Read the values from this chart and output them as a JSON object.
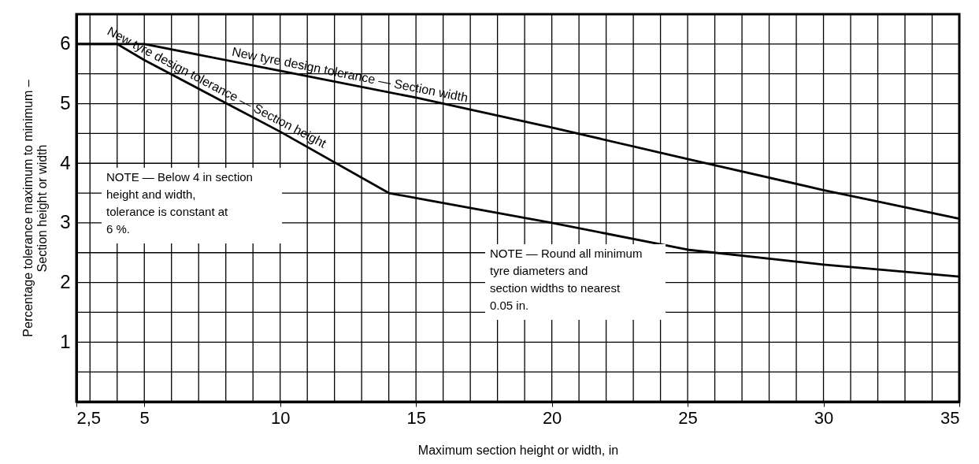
{
  "chart_data": {
    "type": "line",
    "xlabel": "Maximum section height or width, in",
    "ylabel": "Percentage tolerance maximum to minimum –\nSection height or width",
    "series": [
      {
        "name": "New tyre design tolerance — Section width",
        "color": "#000000",
        "x": [
          2.5,
          5,
          10,
          15,
          20,
          25,
          30,
          35
        ],
        "values": [
          6,
          6,
          5.55,
          5.1,
          4.6,
          4.07,
          3.55,
          3.07
        ]
      },
      {
        "name": "New tyre design tolerance — Section height",
        "color": "#000000",
        "x": [
          2.5,
          4,
          5,
          10,
          14,
          20,
          25,
          30,
          35
        ],
        "values": [
          6,
          6,
          5.73,
          4.53,
          3.5,
          3.0,
          2.55,
          2.3,
          2.1
        ]
      }
    ],
    "xlim": [
      2.5,
      35
    ],
    "ylim": [
      0,
      6.5
    ],
    "xticks": [
      {
        "value": 2.5,
        "label": "2,5"
      },
      {
        "value": 3,
        "label": null
      },
      {
        "value": 4,
        "label": null
      },
      5,
      {
        "value": 6,
        "label": null
      },
      {
        "value": 7,
        "label": null
      },
      {
        "value": 8,
        "label": null
      },
      {
        "value": 9,
        "label": null
      },
      10,
      {
        "value": 11,
        "label": null
      },
      {
        "value": 12,
        "label": null
      },
      {
        "value": 13,
        "label": null
      },
      {
        "value": 14,
        "label": null
      },
      15,
      {
        "value": 16,
        "label": null
      },
      {
        "value": 17,
        "label": null
      },
      {
        "value": 18,
        "label": null
      },
      {
        "value": 19,
        "label": null
      },
      20,
      {
        "value": 21,
        "label": null
      },
      {
        "value": 22,
        "label": null
      },
      {
        "value": 23,
        "label": null
      },
      {
        "value": 24,
        "label": null
      },
      25,
      {
        "value": 26,
        "label": null
      },
      {
        "value": 27,
        "label": null
      },
      {
        "value": 28,
        "label": null
      },
      {
        "value": 29,
        "label": null
      },
      30,
      {
        "value": 31,
        "label": null
      },
      {
        "value": 32,
        "label": null
      },
      {
        "value": 33,
        "label": null
      },
      {
        "value": 34,
        "label": null
      },
      35
    ],
    "yticks": [
      {
        "value": 0.5,
        "label": null
      },
      1,
      {
        "value": 1.5,
        "label": null
      },
      2,
      {
        "value": 2.5,
        "label": null
      },
      3,
      {
        "value": 3.5,
        "label": null
      },
      4,
      {
        "value": 4.5,
        "label": null
      },
      5,
      {
        "value": 5.5,
        "label": null
      },
      6
    ],
    "grid": true,
    "marker": "none",
    "line_style": "solid",
    "annotations": [
      "NOTE — Below 4 in section height and width, tolerance is constant at 6 %.",
      "NOTE — Round all minimum tyre diameters and section widths to nearest 0.05 in."
    ]
  }
}
